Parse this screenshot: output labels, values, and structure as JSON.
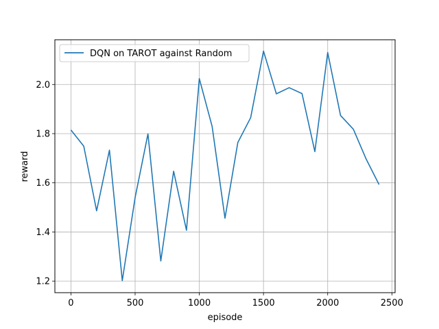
{
  "chart_data": {
    "type": "line",
    "title": "",
    "xlabel": "episode",
    "ylabel": "reward",
    "xlim": [
      -125,
      2525
    ],
    "ylim": [
      1.153,
      2.182
    ],
    "xticks": [
      0,
      500,
      1000,
      1500,
      2000,
      2500
    ],
    "xtick_labels": [
      "0",
      "500",
      "1000",
      "1500",
      "2000",
      "2500"
    ],
    "yticks": [
      1.2,
      1.4,
      1.6,
      1.8,
      2.0
    ],
    "ytick_labels": [
      "1.2",
      "1.4",
      "1.6",
      "1.8",
      "2.0"
    ],
    "grid": true,
    "legend_position": "top-left",
    "series": [
      {
        "name": "DQN on TAROT against Random",
        "color": "#1f77b4",
        "x": [
          0,
          100,
          200,
          300,
          400,
          500,
          600,
          700,
          800,
          900,
          1000,
          1100,
          1200,
          1300,
          1400,
          1500,
          1600,
          1700,
          1800,
          1900,
          2000,
          2100,
          2200,
          2300,
          2400
        ],
        "y": [
          1.815,
          1.749,
          1.486,
          1.733,
          1.202,
          1.54,
          1.799,
          1.282,
          1.647,
          1.407,
          2.024,
          1.829,
          1.456,
          1.764,
          1.865,
          2.136,
          1.962,
          1.987,
          1.963,
          1.727,
          2.13,
          1.874,
          1.818,
          1.696,
          1.593
        ]
      }
    ]
  }
}
